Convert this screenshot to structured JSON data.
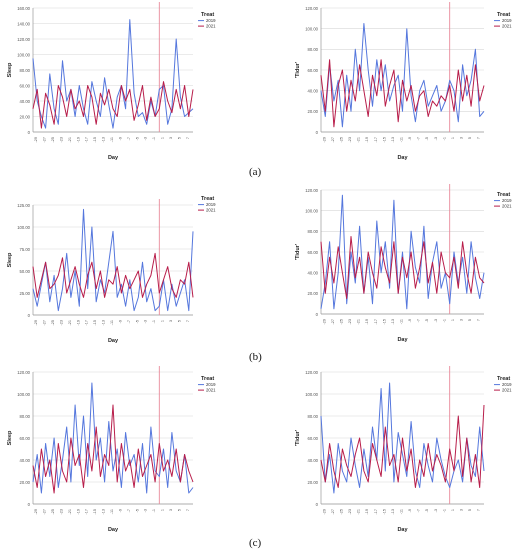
{
  "figure": {
    "panel_labels": [
      "(a)",
      "(b)",
      "(c)"
    ]
  },
  "legend_title": "Treat",
  "colors": {
    "2019": "#5577dd",
    "2021": "#b81d4a",
    "marker": "#e88a9a"
  },
  "chart_data": [
    {
      "type": "line",
      "panel": "a",
      "ylabel": "Sleep",
      "xlabel": "Day",
      "ylim": [
        0,
        160
      ],
      "yticks": [
        "0",
        "20.00",
        "40.00",
        "60.00",
        "80.00",
        "100.00",
        "120.00",
        "140.00",
        "160.00"
      ],
      "xticks": [
        "-29",
        "-27",
        "-25",
        "-23",
        "-21",
        "-19",
        "-17",
        "-15",
        "-13",
        "-11",
        "-9",
        "-7",
        "-5",
        "-3",
        "-1",
        "1",
        "3",
        "5",
        "7"
      ],
      "x_start": -30,
      "x_end": 8,
      "marker_x": 0,
      "legend": {
        "title": "Treat",
        "position": "top-right"
      },
      "series": [
        {
          "name": "2019",
          "values": [
            95,
            40,
            20,
            5,
            75,
            30,
            10,
            92,
            40,
            55,
            20,
            60,
            30,
            10,
            65,
            40,
            20,
            70,
            35,
            5,
            45,
            60,
            30,
            145,
            50,
            20,
            25,
            10,
            40,
            20,
            55,
            60,
            10,
            30,
            120,
            45,
            20,
            25,
            30
          ]
        },
        {
          "name": "2021",
          "values": [
            30,
            55,
            5,
            50,
            35,
            10,
            60,
            45,
            20,
            55,
            30,
            40,
            20,
            60,
            45,
            10,
            50,
            35,
            55,
            30,
            20,
            60,
            40,
            55,
            15,
            35,
            60,
            15,
            45,
            20,
            30,
            65,
            40,
            25,
            55,
            30,
            60,
            20,
            55
          ]
        }
      ]
    },
    {
      "type": "line",
      "panel": "a",
      "ylabel": "'Tidur'",
      "xlabel": "Day",
      "ylim": [
        0,
        120
      ],
      "yticks": [
        "0",
        "20.00",
        "40.00",
        "60.00",
        "80.00",
        "100.00",
        "120.00"
      ],
      "xticks": [
        "-29",
        "-27",
        "-25",
        "-23",
        "-21",
        "-19",
        "-17",
        "-15",
        "-13",
        "-11",
        "-9",
        "-7",
        "-5",
        "-3",
        "-1",
        "1",
        "3",
        "5",
        "7"
      ],
      "x_start": -30,
      "x_end": 8,
      "marker_x": 0,
      "legend": {
        "title": "Treat",
        "position": "top-right"
      },
      "series": [
        {
          "name": "2019",
          "values": [
            40,
            15,
            65,
            30,
            50,
            5,
            55,
            20,
            80,
            40,
            105,
            60,
            25,
            70,
            40,
            65,
            30,
            45,
            55,
            20,
            100,
            35,
            10,
            40,
            50,
            25,
            35,
            45,
            20,
            30,
            50,
            40,
            10,
            65,
            35,
            50,
            80,
            15,
            20
          ]
        },
        {
          "name": "2021",
          "values": [
            55,
            20,
            70,
            5,
            45,
            60,
            20,
            50,
            30,
            65,
            40,
            15,
            55,
            35,
            70,
            25,
            45,
            60,
            10,
            50,
            30,
            45,
            20,
            35,
            40,
            15,
            30,
            25,
            35,
            30,
            45,
            20,
            60,
            30,
            55,
            25,
            65,
            30,
            45
          ]
        }
      ]
    },
    {
      "type": "line",
      "panel": "b",
      "ylabel": "Sleep",
      "xlabel": "Day",
      "ylim": [
        0,
        125
      ],
      "yticks": [
        "0",
        "25.00",
        "50.00",
        "75.00",
        "100.00",
        "125.00"
      ],
      "xticks": [
        "-29",
        "-27",
        "-25",
        "-23",
        "-21",
        "-19",
        "-17",
        "-15",
        "-13",
        "-11",
        "-9",
        "-7",
        "-5",
        "-3",
        "-1",
        "1",
        "3",
        "5",
        "7"
      ],
      "x_start": -30,
      "x_end": 8,
      "marker_x": 0,
      "legend": {
        "title": "Treat",
        "position": "top-right"
      },
      "series": [
        {
          "name": "2019",
          "values": [
            30,
            10,
            35,
            60,
            15,
            45,
            5,
            30,
            70,
            20,
            50,
            10,
            120,
            30,
            100,
            15,
            40,
            25,
            60,
            95,
            20,
            35,
            10,
            40,
            5,
            20,
            60,
            15,
            30,
            5,
            10,
            40,
            5,
            35,
            10,
            25,
            40,
            5,
            95
          ]
        },
        {
          "name": "2021",
          "values": [
            55,
            20,
            40,
            60,
            30,
            35,
            45,
            65,
            25,
            40,
            55,
            35,
            20,
            45,
            60,
            30,
            50,
            20,
            40,
            35,
            55,
            25,
            45,
            30,
            40,
            50,
            20,
            35,
            45,
            70,
            25,
            40,
            55,
            30,
            20,
            40,
            35,
            60,
            20
          ]
        }
      ]
    },
    {
      "type": "line",
      "panel": "b",
      "ylabel": "'Tidur'",
      "xlabel": "Day",
      "ylim": [
        0,
        120
      ],
      "yticks": [
        "0",
        "20.00",
        "40.00",
        "60.00",
        "80.00",
        "100.00",
        "120.00"
      ],
      "xticks": [
        "-29",
        "-27",
        "-25",
        "-23",
        "-21",
        "-19",
        "-17",
        "-15",
        "-13",
        "-11",
        "-9",
        "-7",
        "-5",
        "-3",
        "-1",
        "1",
        "3",
        "5",
        "7"
      ],
      "x_start": -30,
      "x_end": 8,
      "marker_x": 0,
      "legend": {
        "title": "Treat",
        "position": "top-right"
      },
      "series": [
        {
          "name": "2019",
          "values": [
            5,
            30,
            70,
            5,
            40,
            115,
            10,
            60,
            30,
            85,
            20,
            55,
            10,
            90,
            40,
            70,
            25,
            110,
            20,
            60,
            5,
            80,
            45,
            30,
            85,
            15,
            50,
            70,
            25,
            40,
            10,
            60,
            30,
            55,
            20,
            70,
            35,
            15,
            40
          ]
        },
        {
          "name": "2021",
          "values": [
            70,
            20,
            55,
            30,
            65,
            40,
            15,
            75,
            35,
            55,
            20,
            60,
            40,
            25,
            65,
            45,
            30,
            70,
            20,
            55,
            35,
            60,
            25,
            45,
            70,
            30,
            50,
            20,
            60,
            40,
            35,
            55,
            25,
            70,
            40,
            20,
            55,
            35,
            30
          ]
        }
      ]
    },
    {
      "type": "line",
      "panel": "c",
      "ylabel": "Sleep",
      "xlabel": "Day",
      "ylim": [
        0,
        120
      ],
      "yticks": [
        "0",
        "20.00",
        "40.00",
        "60.00",
        "80.00",
        "100.00",
        "120.00"
      ],
      "xticks": [
        "-29",
        "-27",
        "-25",
        "-23",
        "-21",
        "-19",
        "-17",
        "-15",
        "-13",
        "-11",
        "-9",
        "-7",
        "-5",
        "-3",
        "-1",
        "1",
        "3",
        "5",
        "7"
      ],
      "x_start": -30,
      "x_end": 8,
      "marker_x": 0,
      "legend": {
        "title": "Treat",
        "position": "top-right"
      },
      "series": [
        {
          "name": "2019",
          "values": [
            20,
            45,
            10,
            55,
            25,
            60,
            15,
            40,
            70,
            20,
            90,
            35,
            80,
            25,
            110,
            40,
            60,
            20,
            75,
            30,
            50,
            15,
            65,
            35,
            45,
            20,
            55,
            10,
            70,
            30,
            25,
            50,
            15,
            65,
            30,
            20,
            45,
            10,
            15
          ]
        },
        {
          "name": "2021",
          "values": [
            35,
            15,
            50,
            25,
            40,
            10,
            55,
            30,
            20,
            60,
            35,
            45,
            15,
            55,
            30,
            70,
            25,
            45,
            35,
            90,
            20,
            55,
            30,
            40,
            15,
            50,
            25,
            35,
            45,
            20,
            55,
            30,
            40,
            25,
            50,
            20,
            45,
            30,
            20
          ]
        }
      ]
    },
    {
      "type": "line",
      "panel": "c",
      "ylabel": "'Tidur'",
      "xlabel": "Day",
      "ylim": [
        0,
        120
      ],
      "yticks": [
        "0",
        "20.00",
        "40.00",
        "60.00",
        "80.00",
        "100.00",
        "120.00"
      ],
      "xticks": [
        "-29",
        "-27",
        "-25",
        "-23",
        "-21",
        "-19",
        "-17",
        "-15",
        "-13",
        "-11",
        "-9",
        "-7",
        "-5",
        "-3",
        "-1",
        "1",
        "3",
        "5",
        "7"
      ],
      "x_start": -30,
      "x_end": 8,
      "marker_x": 0,
      "legend": {
        "title": "Treat",
        "position": "top-right"
      },
      "series": [
        {
          "name": "2019",
          "values": [
            80,
            20,
            45,
            10,
            55,
            30,
            20,
            60,
            35,
            15,
            50,
            25,
            70,
            40,
            105,
            30,
            110,
            20,
            65,
            45,
            25,
            75,
            30,
            15,
            55,
            35,
            20,
            60,
            40,
            25,
            15,
            30,
            40,
            20,
            60,
            35,
            25,
            70,
            30
          ]
        },
        {
          "name": "2021",
          "values": [
            40,
            20,
            55,
            30,
            15,
            50,
            35,
            25,
            45,
            60,
            30,
            20,
            55,
            40,
            25,
            70,
            35,
            45,
            20,
            60,
            30,
            50,
            15,
            40,
            25,
            55,
            30,
            45,
            35,
            20,
            50,
            30,
            80,
            25,
            60,
            20,
            45,
            15,
            90
          ]
        }
      ]
    }
  ]
}
